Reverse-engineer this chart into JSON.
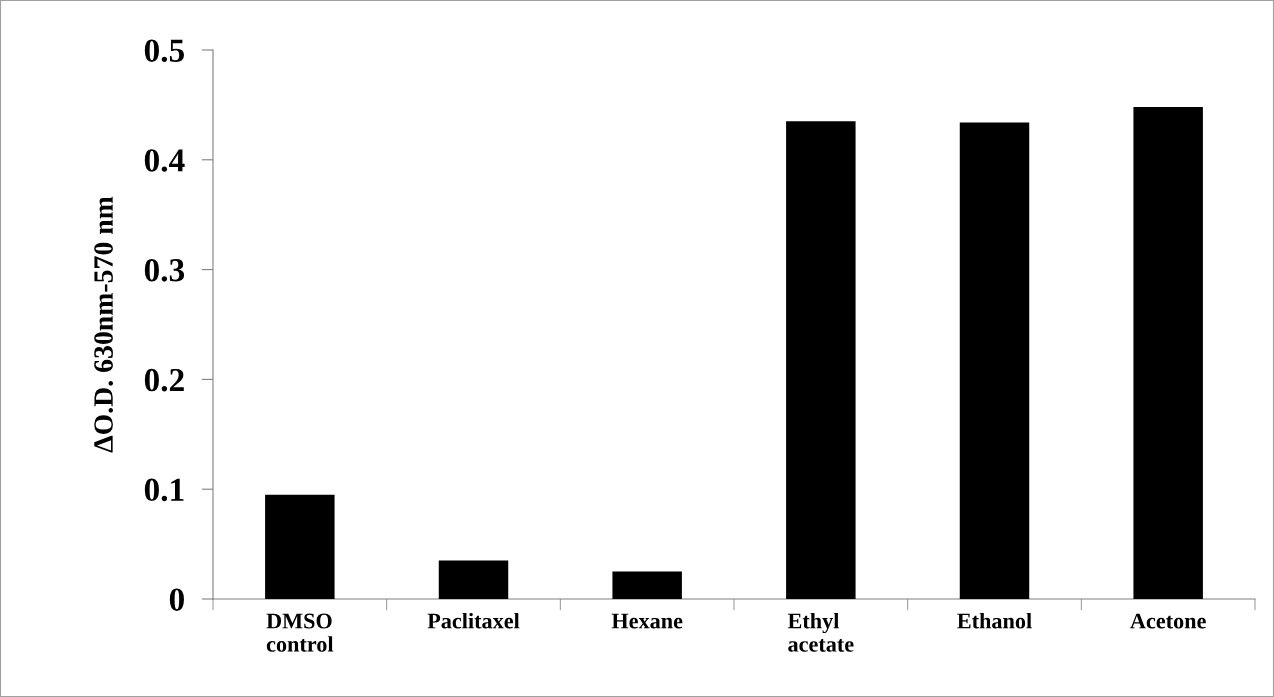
{
  "chart_data": {
    "type": "bar",
    "ylabel": "ΔO.D. 630nm-570 nm",
    "categories": [
      "DMSO\ncontrol",
      "Paclitaxel",
      "Hexane",
      "Ethyl\nacetate",
      "Ethanol",
      "Acetone"
    ],
    "values": [
      0.095,
      0.035,
      0.025,
      0.435,
      0.434,
      0.448
    ],
    "color": "#000000",
    "ylim": [
      0,
      0.5
    ],
    "yticks": [
      0,
      0.1,
      0.2,
      0.3,
      0.4,
      0.5
    ],
    "grid": false,
    "legend": false
  }
}
